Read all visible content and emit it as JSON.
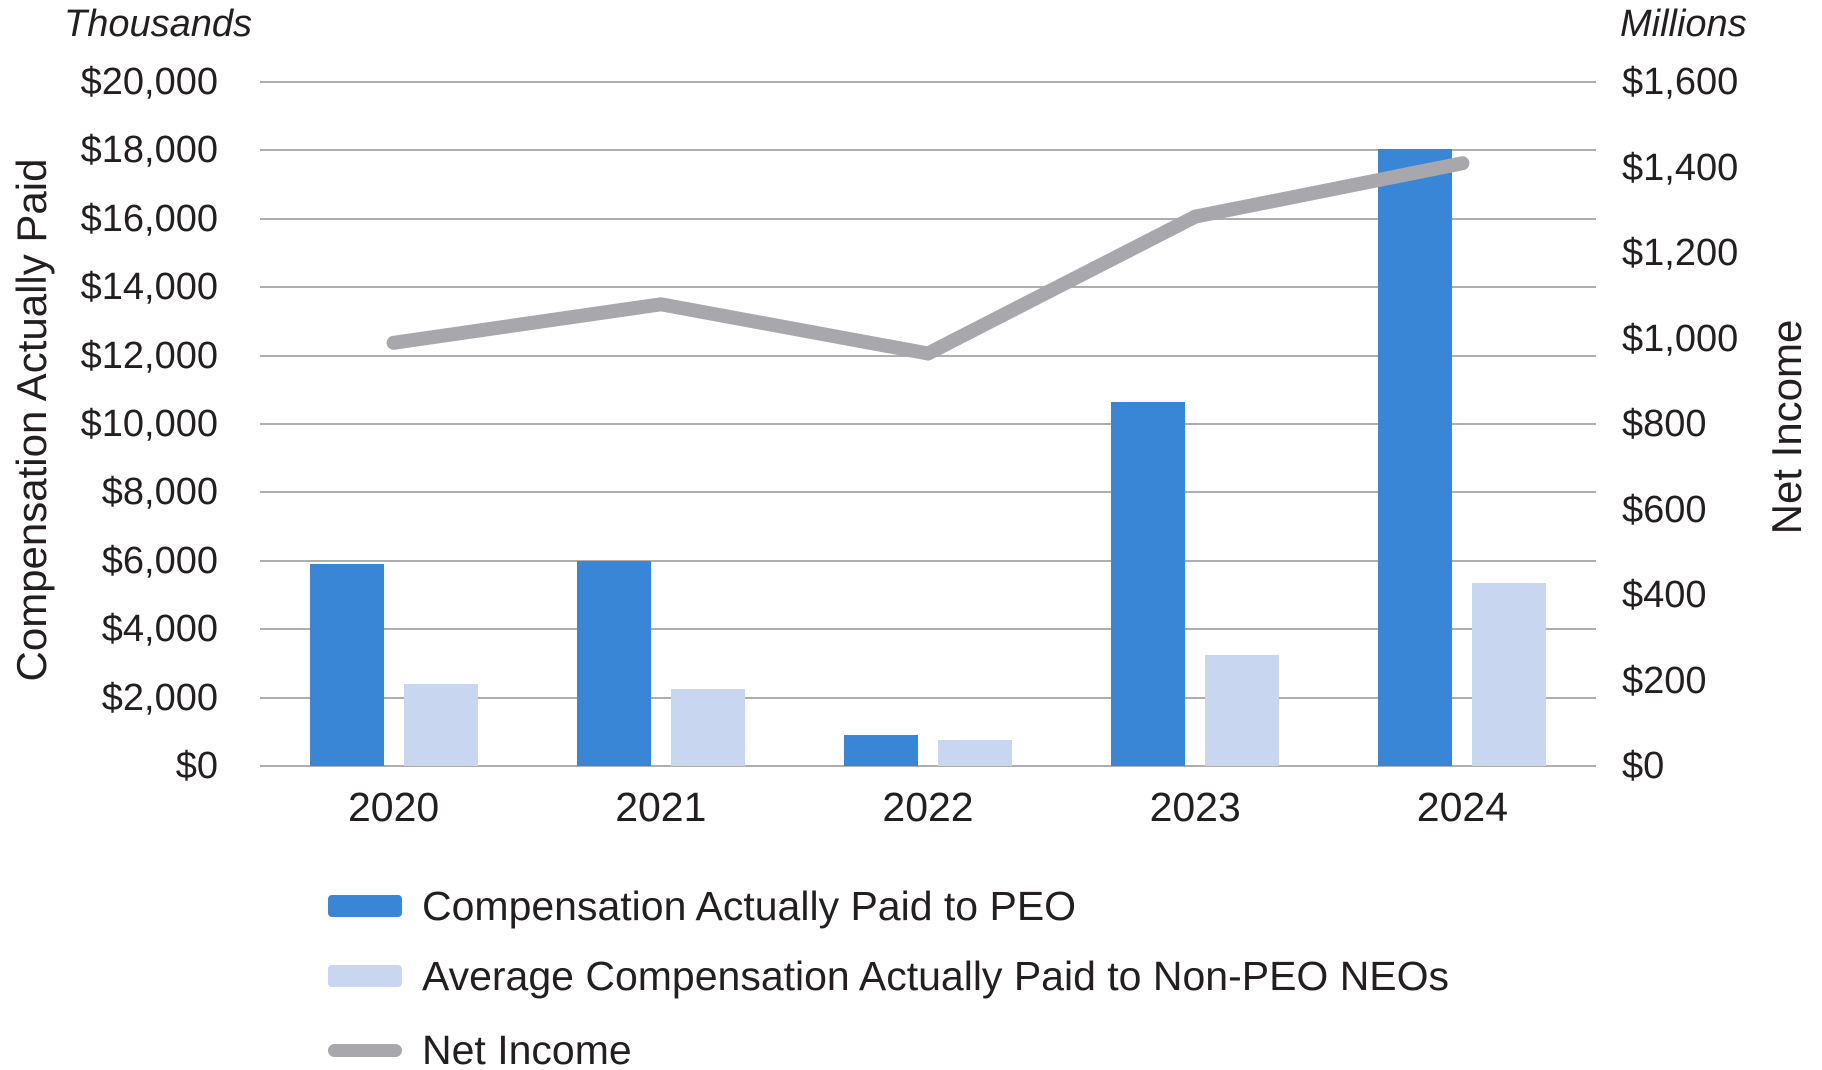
{
  "colors": {
    "peo_bar": "#3886d5",
    "non_peo_bar": "#c9d6f0",
    "net_income_line": "#a8a8ac",
    "gridline": "#aeaeae",
    "text": "#231f20"
  },
  "chart_data": {
    "type": "bar+line",
    "categories": [
      "2020",
      "2021",
      "2022",
      "2023",
      "2024"
    ],
    "series": [
      {
        "name": "Compensation Actually Paid to PEO",
        "type": "bar",
        "axis": "left",
        "color": "#3886d5",
        "values": [
          5900,
          6000,
          900,
          10650,
          18050
        ]
      },
      {
        "name": "Average Compensation Actually Paid to Non-PEO NEOs",
        "type": "bar",
        "axis": "left",
        "color": "#c9d6f0",
        "values": [
          2400,
          2250,
          750,
          3250,
          5350
        ]
      },
      {
        "name": "Net Income",
        "type": "line",
        "axis": "right",
        "color": "#a8a8ac",
        "values": [
          990,
          1080,
          965,
          1285,
          1410
        ]
      }
    ],
    "left_axis": {
      "unit_label": "Thousands",
      "title": "Compensation Actually Paid",
      "min": 0,
      "max": 20000,
      "tick_step": 2000,
      "tick_labels": [
        "$20,000",
        "$18,000",
        "$16,000",
        "$14,000",
        "$12,000",
        "$10,000",
        "$8,000",
        "$6,000",
        "$4,000",
        "$2,000",
        "$0"
      ]
    },
    "right_axis": {
      "unit_label": "Millions",
      "title": "Net Income",
      "min": 0,
      "max": 1600,
      "tick_step": 200,
      "tick_labels": [
        "$1,600",
        "$1,400",
        "$1,200",
        "$1,000",
        "$800",
        "$600",
        "$400",
        "$200",
        "$0"
      ]
    },
    "grid": "horizontal gridlines at left-axis ticks",
    "legend_position": "bottom-left"
  }
}
